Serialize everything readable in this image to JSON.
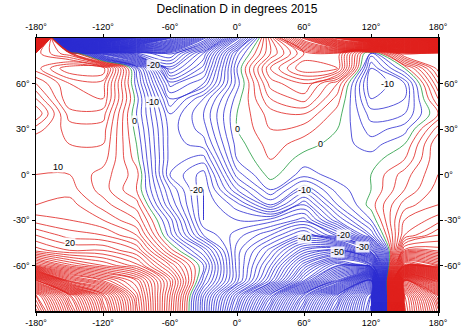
{
  "chart_data": {
    "type": "contour",
    "title": "Declination D in degrees 2015",
    "x": [
      -180,
      -150,
      -120,
      -90,
      -60,
      -30,
      0,
      30,
      60,
      90,
      120,
      150,
      180
    ],
    "y": [
      -90,
      -80,
      -70,
      -60,
      -50,
      -40,
      -30,
      -20,
      -10,
      0,
      10,
      20,
      30,
      40,
      50,
      60,
      70,
      80,
      90
    ],
    "z": [
      [
        137,
        107,
        77,
        47,
        17,
        -13,
        -43,
        -73,
        -103,
        -133,
        -163,
        167,
        137
      ],
      [
        130,
        100,
        72,
        45,
        18,
        -12,
        -38,
        -65,
        -95,
        -125,
        -160,
        165,
        130
      ],
      [
        100,
        60,
        50,
        40,
        20,
        -5,
        -25,
        -45,
        -70,
        -95,
        -130,
        140,
        100
      ],
      [
        45,
        35,
        30,
        25,
        12,
        -2,
        -25,
        -40,
        -60,
        -75,
        -65,
        55,
        45
      ],
      [
        25,
        22,
        22,
        18,
        3,
        -8,
        -25,
        -35,
        -48,
        -52,
        -30,
        25,
        25
      ],
      [
        20,
        17,
        16,
        12,
        -3,
        -18,
        -23,
        -28,
        -35,
        -25,
        -8,
        14,
        20
      ],
      [
        15,
        14,
        12,
        8,
        -5,
        -22,
        -20,
        -21,
        -25,
        -12,
        -2,
        12,
        15
      ],
      [
        12,
        13,
        9,
        5,
        -10,
        -22,
        -17,
        -8,
        -18,
        -6,
        1,
        9,
        12
      ],
      [
        11,
        11,
        7,
        2,
        -12,
        -22,
        -10,
        -2,
        -10,
        -3,
        0,
        6,
        11
      ],
      [
        10,
        10,
        7,
        3,
        -16,
        -21,
        -5,
        1,
        -3,
        -1,
        0,
        5,
        10
      ],
      [
        10,
        10,
        9,
        1,
        -15,
        -17,
        -2,
        2,
        -1,
        -1,
        -1,
        2,
        10
      ],
      [
        10,
        10,
        10,
        0,
        -15,
        -13,
        -1,
        3,
        1,
        -1,
        -3,
        0,
        10
      ],
      [
        7,
        11,
        11,
        -1,
        -15,
        -11,
        0,
        4,
        3,
        0,
        -5,
        -3,
        7
      ],
      [
        2,
        13,
        13,
        -2,
        -16,
        -10,
        0,
        5,
        6,
        1,
        -7,
        -6,
        2
      ],
      [
        6,
        16,
        16,
        -1,
        -20,
        -12,
        -1,
        8,
        11,
        3,
        -10,
        -8,
        6
      ],
      [
        10,
        16,
        17,
        -3,
        -25,
        -20,
        -3,
        11,
        14,
        6,
        -12,
        -8,
        10
      ],
      [
        15,
        22,
        22,
        -5,
        -35,
        -25,
        -2,
        14,
        22,
        20,
        -10,
        0,
        15
      ],
      [
        15,
        8,
        -25,
        -40,
        -45,
        -30,
        -5,
        8,
        18,
        20,
        -5,
        18,
        15
      ],
      [
        160,
        -170,
        -140,
        -110,
        -80,
        -50,
        -20,
        10,
        40,
        70,
        100,
        130,
        160
      ]
    ],
    "levels": {
      "start": -180,
      "end": 180,
      "step": 2
    },
    "line_colors": {
      "negative": "#2b2bd0",
      "zero": "#1e9b3c",
      "positive": "#e0201c"
    },
    "xlim": [
      -180,
      180
    ],
    "ylim": [
      -90,
      90
    ],
    "xticks": [
      {
        "value": -180,
        "label": "-180°"
      },
      {
        "value": -120,
        "label": "-120°"
      },
      {
        "value": -60,
        "label": "-60°"
      },
      {
        "value": 0,
        "label": "0°"
      },
      {
        "value": 60,
        "label": "60°"
      },
      {
        "value": 120,
        "label": "120°"
      },
      {
        "value": 180,
        "label": "180°"
      }
    ],
    "yticks": [
      {
        "value": -60,
        "label": "-60°"
      },
      {
        "value": -30,
        "label": "-30°"
      },
      {
        "value": 0,
        "label": "0°"
      },
      {
        "value": 30,
        "label": "30°"
      },
      {
        "value": 60,
        "label": "60°"
      }
    ],
    "annotations": [
      {
        "text": "-20",
        "x": -75,
        "y": 72
      },
      {
        "text": "-10",
        "x": -76,
        "y": 48
      },
      {
        "text": "0",
        "x": -92,
        "y": 35
      },
      {
        "text": "10",
        "x": -160,
        "y": 5
      },
      {
        "text": "20",
        "x": -150,
        "y": -45
      },
      {
        "text": "-20",
        "x": -36,
        "y": -10
      },
      {
        "text": "0",
        "x": 0,
        "y": 30
      },
      {
        "text": "0",
        "x": 75,
        "y": 20
      },
      {
        "text": "-10",
        "x": 135,
        "y": 60
      },
      {
        "text": "-10",
        "x": 60,
        "y": -10
      },
      {
        "text": "-20",
        "x": 95,
        "y": -40
      },
      {
        "text": "-30",
        "x": 112,
        "y": -48
      },
      {
        "text": "-40",
        "x": 60,
        "y": -42
      },
      {
        "text": "-50",
        "x": 90,
        "y": -51
      }
    ],
    "grid": false
  }
}
